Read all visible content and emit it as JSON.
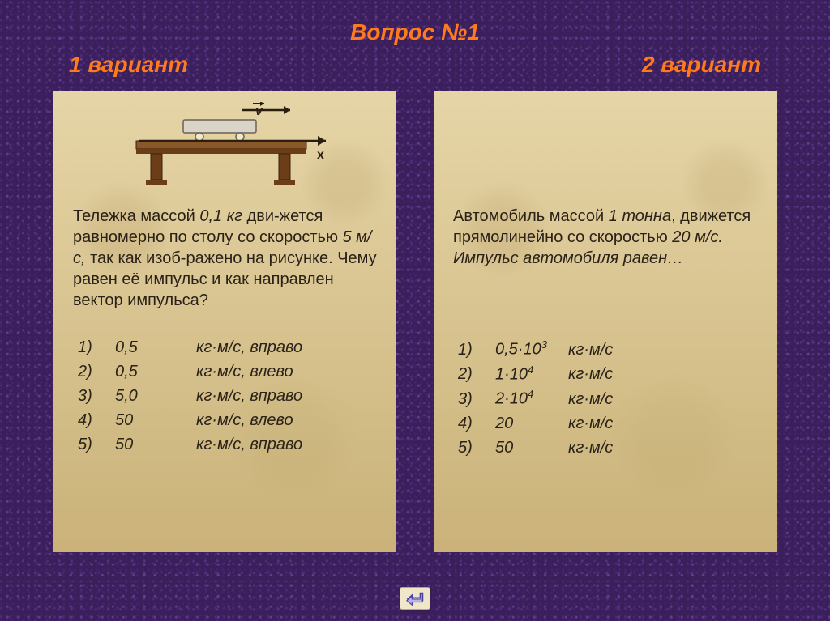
{
  "colors": {
    "page_bg": "#3a1f5a",
    "accent": "#ff7a1a",
    "card_bg": "#d8c28a",
    "text": "#2a2118",
    "table_wood": "#6b3e17",
    "table_wood_light": "#8a5828",
    "cart_fill": "#d9d4c7",
    "arrow": "#2a1e12"
  },
  "title": "Вопрос №1",
  "left": {
    "label": "1 вариант",
    "question_parts": [
      {
        "t": "Тележка массой ",
        "i": false
      },
      {
        "t": "0,1 кг",
        "i": true
      },
      {
        "t": " дви-жется равномерно по столу со скоростью ",
        "i": false
      },
      {
        "t": "5 м/с,",
        "i": true
      },
      {
        "t": " так как изоб-ражено на рисунке. Чему равен её импульс и как направлен вектор импульса?",
        "i": false
      }
    ],
    "options": [
      {
        "n": "1)",
        "v": "0,5",
        "u": "кг·м/с, вправо"
      },
      {
        "n": "2)",
        "v": "0,5",
        "u": "кг·м/с, влево"
      },
      {
        "n": "3)",
        "v": "5,0",
        "u": "кг·м/с, вправо"
      },
      {
        "n": "4)",
        "v": "50",
        "u": "кг·м/с, влево"
      },
      {
        "n": "5)",
        "v": "50",
        "u": "кг·м/с, вправо"
      }
    ],
    "diagram": {
      "v_label": "v",
      "x_label": "x"
    }
  },
  "right": {
    "label": "2 вариант",
    "question_parts": [
      {
        "t": "Автомобиль массой ",
        "i": false
      },
      {
        "t": "1 тонна",
        "i": true
      },
      {
        "t": ", движется прямолинейно со скоростью ",
        "i": false
      },
      {
        "t": "20 м/с. Импульс автомобиля равен…",
        "i": true
      }
    ],
    "options": [
      {
        "n": "1)",
        "v": "0,5·10",
        "sup": "3",
        "u": "кг·м/с"
      },
      {
        "n": "2)",
        "v": "1·10",
        "sup": "4",
        "u": "кг·м/с"
      },
      {
        "n": "3)",
        "v": "2·10",
        "sup": "4",
        "u": "кг·м/с"
      },
      {
        "n": "4)",
        "v": "20",
        "sup": "",
        "u": "кг·м/с"
      },
      {
        "n": "5)",
        "v": "50",
        "sup": "",
        "u": "кг·м/с"
      }
    ]
  },
  "typography": {
    "title_fontsize": 28,
    "body_fontsize": 20,
    "font_family": "Arial"
  }
}
